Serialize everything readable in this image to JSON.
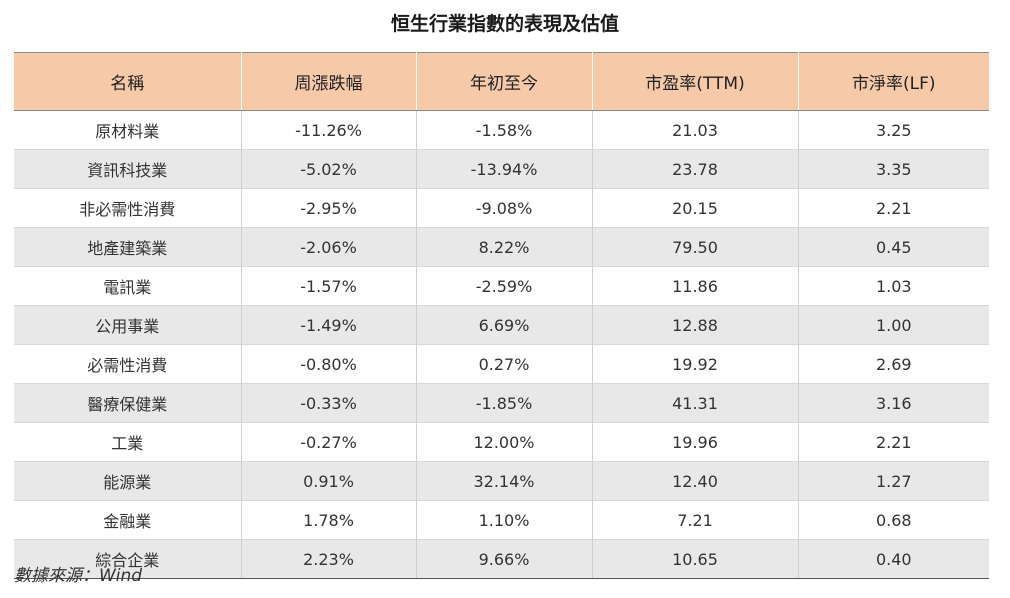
{
  "title": "恒生行業指數的表現及估值",
  "table": {
    "headers": [
      "名稱",
      "周漲跌幅",
      "年初至今",
      "市盈率(TTM)",
      "市淨率(LF)"
    ],
    "rows": [
      [
        "原材料業",
        "-11.26%",
        "-1.58%",
        "21.03",
        "3.25"
      ],
      [
        "資訊科技業",
        "-5.02%",
        "-13.94%",
        "23.78",
        "3.35"
      ],
      [
        "非必需性消費",
        "-2.95%",
        "-9.08%",
        "20.15",
        "2.21"
      ],
      [
        "地產建築業",
        "-2.06%",
        "8.22%",
        "79.50",
        "0.45"
      ],
      [
        "電訊業",
        "-1.57%",
        "-2.59%",
        "11.86",
        "1.03"
      ],
      [
        "公用事業",
        "-1.49%",
        "6.69%",
        "12.88",
        "1.00"
      ],
      [
        "必需性消費",
        "-0.80%",
        "0.27%",
        "19.92",
        "2.69"
      ],
      [
        "醫療保健業",
        "-0.33%",
        "-1.85%",
        "41.31",
        "3.16"
      ],
      [
        "工業",
        "-0.27%",
        "12.00%",
        "19.96",
        "2.21"
      ],
      [
        "能源業",
        "0.91%",
        "32.14%",
        "12.40",
        "1.27"
      ],
      [
        "金融業",
        "1.78%",
        "1.10%",
        "7.21",
        "0.68"
      ],
      [
        "綜合企業",
        "2.23%",
        "9.66%",
        "10.65",
        "0.40"
      ]
    ]
  },
  "source": "數據來源：Wind",
  "colors": {
    "header_bg": "#f6c9a9",
    "alt_row_bg": "#e8e8e8"
  }
}
